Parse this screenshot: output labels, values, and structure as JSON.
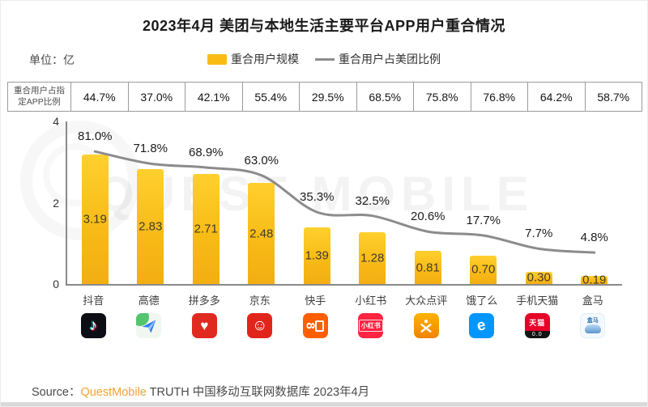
{
  "title": "2023年4月 美团与本地生活主要平台APP用户重合情况",
  "unit_label": "单位：亿",
  "legend": {
    "bar_label": "重合用户规模",
    "line_label": "重合用户占美团比例"
  },
  "overlap_table": {
    "header_line1": "重合用户占指",
    "header_line2": "定APP比例",
    "values": [
      "44.7%",
      "37.0%",
      "42.1%",
      "55.4%",
      "29.5%",
      "68.5%",
      "75.8%",
      "76.8%",
      "64.2%",
      "58.7%"
    ]
  },
  "chart_data": {
    "type": "bar",
    "title": "2023年4月 美团与本地生活主要平台APP用户重合情况",
    "categories": [
      "抖音",
      "高德",
      "拼多多",
      "京东",
      "快手",
      "小红书",
      "大众点评",
      "饿了么",
      "手机天猫",
      "盒马"
    ],
    "series": [
      {
        "name": "重合用户规模",
        "type": "bar",
        "unit": "亿",
        "values": [
          3.19,
          2.83,
          2.71,
          2.48,
          1.39,
          1.28,
          0.81,
          0.7,
          0.3,
          0.19
        ],
        "labels": [
          "3.19",
          "2.83",
          "2.71",
          "2.48",
          "1.39",
          "1.28",
          "0.81",
          "0.70",
          "0.30",
          "0.19"
        ],
        "color": "#F8BB17"
      },
      {
        "name": "重合用户占美团比例",
        "type": "line",
        "unit": "%",
        "values": [
          81.0,
          71.8,
          68.9,
          63.0,
          35.3,
          32.5,
          20.6,
          17.7,
          7.7,
          4.8
        ],
        "labels": [
          "81.0%",
          "71.8%",
          "68.9%",
          "63.0%",
          "35.3%",
          "32.5%",
          "20.6%",
          "17.7%",
          "7.7%",
          "4.8%"
        ],
        "color": "#8C8C8C"
      },
      {
        "name": "重合用户占指定APP比例",
        "type": "table-row",
        "unit": "%",
        "values": [
          44.7,
          37.0,
          42.1,
          55.4,
          29.5,
          68.5,
          75.8,
          76.8,
          64.2,
          58.7
        ]
      }
    ],
    "ylim": [
      0,
      4
    ],
    "yticks": [
      "0",
      "2",
      "4"
    ],
    "grid": false,
    "legend_position": "top"
  },
  "app_icons": [
    "douyin",
    "gaode",
    "pinduoduo",
    "jingdong",
    "kuaishou",
    "xiaohongshu",
    "dazhongdianping",
    "eleme",
    "tianmao",
    "hema"
  ],
  "icon_texts": {
    "xiaohongshu": "小红书",
    "tianmao": "天猫",
    "tianmao_eyes": "0.0",
    "hema": "盒马"
  },
  "source": {
    "prefix": "Source：",
    "brand": "QuestMobile",
    "rest": " TRUTH 中国移动互联网数据库 2023年4月"
  },
  "watermark": "QUEST MOBILE",
  "colors": {
    "bar": "#F8BB17",
    "line": "#8C8C8C",
    "brand_orange": "#F0A32F"
  }
}
